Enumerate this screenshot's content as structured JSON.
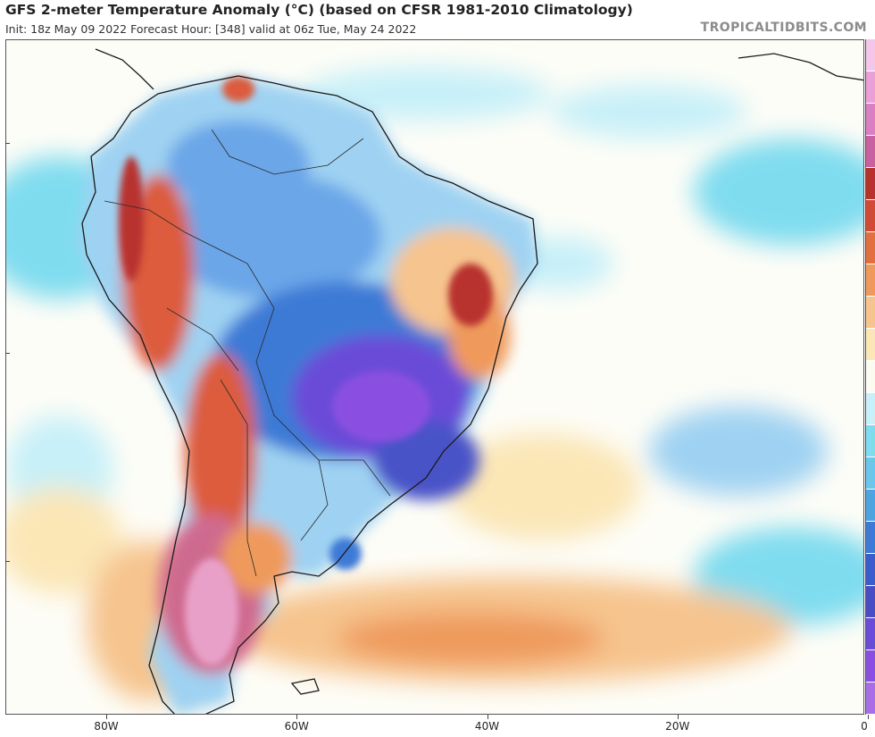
{
  "header": {
    "title": "GFS 2-meter Temperature Anomaly (°C) (based on CFSR 1981-2010 Climatology)",
    "subtitle": "Init: 18z May 09 2022   Forecast Hour: [348]   valid at 06z Tue, May 24 2022",
    "brand": "TROPICALTIDBITS.COM"
  },
  "map": {
    "lon_ticks": [
      {
        "label": "80W",
        "lon": -80
      },
      {
        "label": "60W",
        "lon": -60
      },
      {
        "label": "40W",
        "lon": -40
      },
      {
        "label": "20W",
        "lon": -20
      },
      {
        "label": "0",
        "lon": 0
      }
    ],
    "colors": {
      "deep_purple": "#8a4fe0",
      "purple": "#6a4cd8",
      "indigo": "#4a53c8",
      "blue": "#3d7ad6",
      "light_blue": "#6aa6e8",
      "sky": "#9fd2f2",
      "cyan": "#7fdcef",
      "pale_cyan": "#c7f0f8",
      "neutral": "#fbfbf2",
      "pale_yellow": "#fbe6b6",
      "peach": "#f6c48e",
      "orange": "#ef9a5c",
      "red_orange": "#dc5b3c",
      "red": "#b8322d",
      "magenta": "#cf6a8f",
      "pink": "#e9a0c8",
      "land_border": "#1a1a1a"
    },
    "legend_colors": [
      "#f4c6ea",
      "#eaa0d6",
      "#d97fc2",
      "#c9609f",
      "#b8322d",
      "#d04a36",
      "#e2703f",
      "#ef9a5c",
      "#f6c48e",
      "#fbe6b6",
      "#fbfbf2",
      "#c7f0f8",
      "#7fdcef",
      "#6ac6ea",
      "#4ea4e0",
      "#3d7ad6",
      "#3b5ccc",
      "#4a4cc4",
      "#6a4cd8",
      "#8a4fe0",
      "#a86ee6"
    ]
  }
}
